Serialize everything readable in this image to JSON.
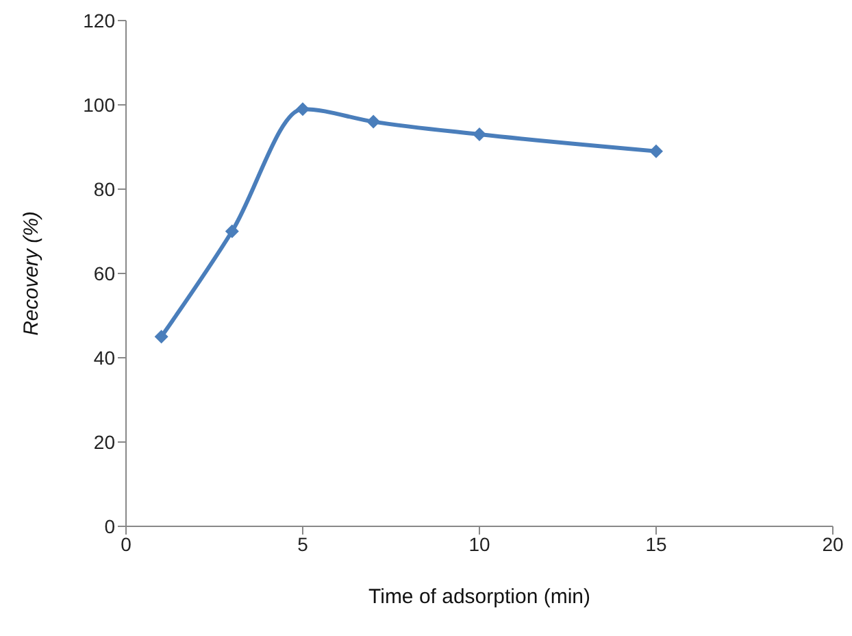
{
  "chart_data": {
    "type": "line",
    "xlabel": "Time of adsorption (min)",
    "ylabel": "Recovery (%)",
    "x": [
      1,
      3,
      5,
      7,
      10,
      15
    ],
    "series": [
      {
        "color": "#4a7ebb",
        "values": [
          45,
          70,
          99,
          96,
          93,
          89
        ]
      }
    ],
    "xlim": [
      0,
      20
    ],
    "xticks": [
      0,
      5,
      10,
      15,
      20
    ],
    "ylim": [
      0,
      120
    ],
    "yticks": [
      0,
      20,
      40,
      60,
      80,
      100,
      120
    ],
    "grid": false,
    "legend": false,
    "marker": "diamond",
    "line_style": "solid"
  }
}
